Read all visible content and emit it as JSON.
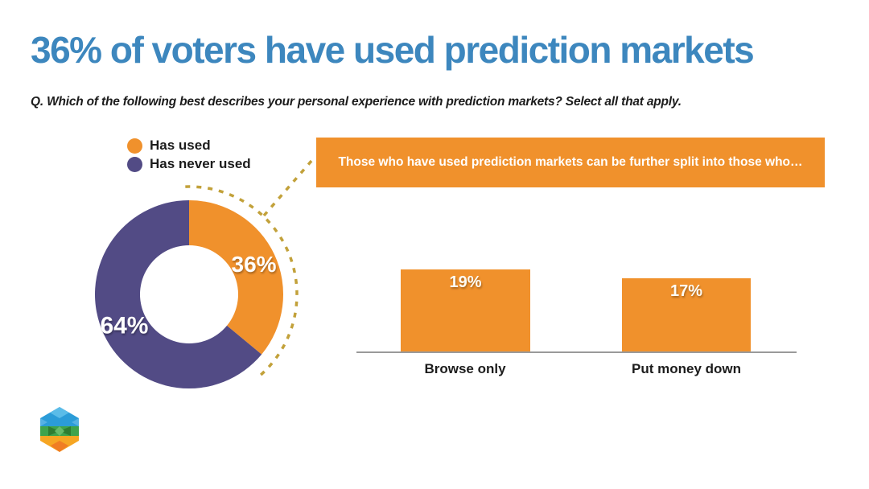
{
  "title": {
    "text": "36% of voters have used prediction markets",
    "color": "#3D87BE"
  },
  "question": {
    "text": "Q. Which of the following best describes your personal experience with prediction markets? Select all that apply."
  },
  "legend": {
    "items": [
      {
        "label": "Has used",
        "color": "#F0912C"
      },
      {
        "label": "Has never used",
        "color": "#524B85"
      }
    ]
  },
  "callout": {
    "text": "Those who have used prediction markets can be further split into those who…",
    "background": "#F0912C",
    "text_color": "#ffffff"
  },
  "annotation": {
    "dashed_color": "#C2A13A"
  },
  "chart_data": [
    {
      "type": "pie",
      "donut": true,
      "labels": [
        "Has used",
        "Has never used"
      ],
      "values": [
        36,
        64
      ],
      "value_labels": [
        "36%",
        "64%"
      ],
      "colors": [
        "#F0912C",
        "#524B85"
      ],
      "start_angle_deg": 0,
      "direction": "clockwise",
      "legend_position": "top-left"
    },
    {
      "type": "bar",
      "categories": [
        "Browse only",
        "Put money down"
      ],
      "values": [
        19,
        17
      ],
      "value_labels": [
        "19%",
        "17%"
      ],
      "bar_color": "#F0912C",
      "ylim": [
        0,
        20
      ],
      "grid": false,
      "baseline_axis": true
    }
  ],
  "logo": {
    "name": "cube-logo"
  }
}
